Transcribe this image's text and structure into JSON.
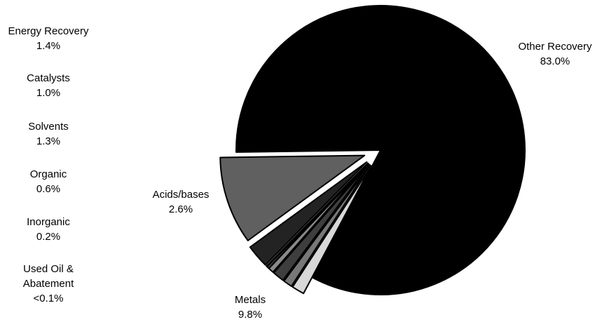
{
  "chart_data": {
    "type": "pie",
    "title": "",
    "slices": [
      {
        "label": "Other Recovery",
        "value_label": "83.0%",
        "value": 83.0,
        "color": "#000000"
      },
      {
        "label": "Metals",
        "value_label": "9.8%",
        "value": 9.8,
        "color": "#606060"
      },
      {
        "label": "Acids/bases",
        "value_label": "2.6%",
        "value": 2.6,
        "color": "#232323"
      },
      {
        "label": "Used Oil &\nAbatement",
        "value_label": "<0.1%",
        "value": 0.1,
        "color": "#e8e8e8"
      },
      {
        "label": "Inorganic",
        "value_label": "0.2%",
        "value": 0.2,
        "color": "#b0b0b0"
      },
      {
        "label": "Organic",
        "value_label": "0.6%",
        "value": 0.6,
        "color": "#8a8a8a"
      },
      {
        "label": "Solvents",
        "value_label": "1.3%",
        "value": 1.3,
        "color": "#3e3e3e"
      },
      {
        "label": "Catalysts",
        "value_label": "1.0%",
        "value": 1.0,
        "color": "#777777"
      },
      {
        "label": "Energy Recovery",
        "value_label": "1.4%",
        "value": 1.4,
        "color": "#d8d8d8"
      }
    ],
    "legend": "none"
  }
}
